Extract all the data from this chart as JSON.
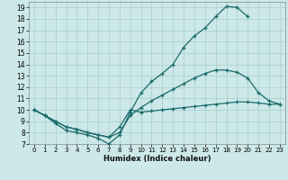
{
  "xlabel": "Humidex (Indice chaleur)",
  "xlim": [
    -0.5,
    23.5
  ],
  "ylim": [
    7,
    19.5
  ],
  "bg_color": "#cce8e8",
  "line_color": "#1a6b6b",
  "grid_color": "#aacccc",
  "line1_x": [
    0,
    1,
    2,
    3,
    4,
    5,
    6,
    7,
    8,
    9,
    10,
    11,
    12,
    13,
    14,
    15,
    16,
    17,
    18,
    19,
    20
  ],
  "line1_y": [
    10.0,
    9.5,
    8.8,
    8.2,
    8.0,
    7.8,
    7.5,
    7.0,
    7.8,
    9.8,
    11.5,
    12.5,
    13.2,
    14.0,
    15.5,
    16.5,
    17.2,
    18.2,
    19.1,
    19.0,
    18.2
  ],
  "line2_x": [
    0,
    1,
    2,
    3,
    4,
    5,
    6,
    7,
    8,
    9,
    10,
    11,
    12,
    13,
    14,
    15,
    16,
    17,
    18,
    19,
    20,
    21,
    22,
    23
  ],
  "line2_y": [
    10.0,
    9.5,
    9.0,
    8.5,
    8.3,
    8.0,
    7.8,
    7.6,
    8.0,
    9.5,
    10.2,
    10.8,
    11.3,
    11.8,
    12.3,
    12.8,
    13.2,
    13.5,
    13.5,
    13.3,
    12.8,
    11.5,
    10.8,
    10.5
  ],
  "line3_x": [
    0,
    1,
    2,
    3,
    4,
    5,
    6,
    7,
    8,
    9,
    10,
    11,
    12,
    13,
    14,
    15,
    16,
    17,
    18,
    19,
    20,
    21,
    22,
    23
  ],
  "line3_y": [
    10.0,
    9.5,
    9.0,
    8.5,
    8.3,
    8.0,
    7.8,
    7.6,
    8.5,
    10.0,
    9.8,
    9.9,
    10.0,
    10.1,
    10.2,
    10.3,
    10.4,
    10.5,
    10.6,
    10.7,
    10.7,
    10.6,
    10.5,
    10.5
  ],
  "xticks": [
    0,
    1,
    2,
    3,
    4,
    5,
    6,
    7,
    8,
    9,
    10,
    11,
    12,
    13,
    14,
    15,
    16,
    17,
    18,
    19,
    20,
    21,
    22,
    23
  ],
  "yticks": [
    7,
    8,
    9,
    10,
    11,
    12,
    13,
    14,
    15,
    16,
    17,
    18,
    19
  ]
}
